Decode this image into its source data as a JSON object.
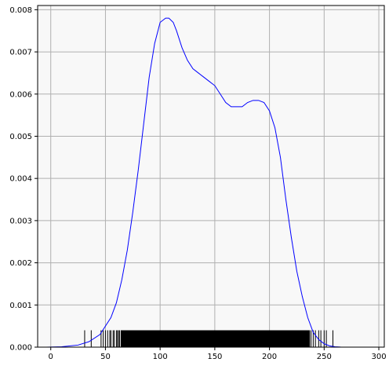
{
  "chart_data": {
    "type": "line",
    "title": "",
    "xlabel": "",
    "ylabel": "",
    "xlim": [
      -12,
      305
    ],
    "ylim": [
      0,
      0.0081
    ],
    "grid": true,
    "x_ticks": [
      0,
      50,
      100,
      150,
      200,
      250,
      300
    ],
    "x_tick_labels": [
      "0",
      "50",
      "100",
      "150",
      "200",
      "250",
      "300"
    ],
    "y_ticks": [
      0,
      0.001,
      0.002,
      0.003,
      0.004,
      0.005,
      0.006,
      0.007,
      0.008
    ],
    "y_tick_labels": [
      "0.000",
      "0.001",
      "0.002",
      "0.003",
      "0.004",
      "0.005",
      "0.006",
      "0.007",
      "0.008"
    ],
    "series": [
      {
        "kind": "kde",
        "color": "#0000ff",
        "x": [
          -4,
          10,
          25,
          35,
          45,
          55,
          60,
          65,
          70,
          75,
          80,
          85,
          90,
          95,
          100,
          105,
          108,
          112,
          115,
          120,
          125,
          130,
          135,
          140,
          145,
          150,
          155,
          160,
          165,
          170,
          175,
          180,
          185,
          190,
          195,
          200,
          205,
          210,
          215,
          220,
          225,
          230,
          235,
          240,
          245,
          250,
          255,
          260,
          265,
          270,
          280,
          292
        ],
        "y": [
          0.0,
          1e-05,
          5e-05,
          0.00013,
          0.0003,
          0.0007,
          0.00105,
          0.0016,
          0.0023,
          0.0032,
          0.0042,
          0.0053,
          0.0064,
          0.0072,
          0.0077,
          0.0078,
          0.0078,
          0.0077,
          0.0075,
          0.0071,
          0.0068,
          0.0066,
          0.0065,
          0.0064,
          0.0063,
          0.0062,
          0.006,
          0.0058,
          0.0057,
          0.0057,
          0.0057,
          0.0058,
          0.00585,
          0.00585,
          0.0058,
          0.0056,
          0.0052,
          0.0045,
          0.0035,
          0.0026,
          0.0018,
          0.0012,
          0.0007,
          0.00035,
          0.00018,
          8e-05,
          3e-05,
          1e-05,
          3e-06,
          1e-06,
          0.0,
          0.0
        ]
      }
    ],
    "rug": {
      "color": "#000000",
      "height": 0.0004,
      "dense_range": [
        64,
        237
      ],
      "x": [
        31,
        37,
        46,
        48,
        50,
        52,
        54,
        55,
        57,
        58,
        60,
        61,
        62,
        63,
        238,
        240,
        242,
        245,
        247,
        250,
        252,
        258
      ]
    }
  }
}
